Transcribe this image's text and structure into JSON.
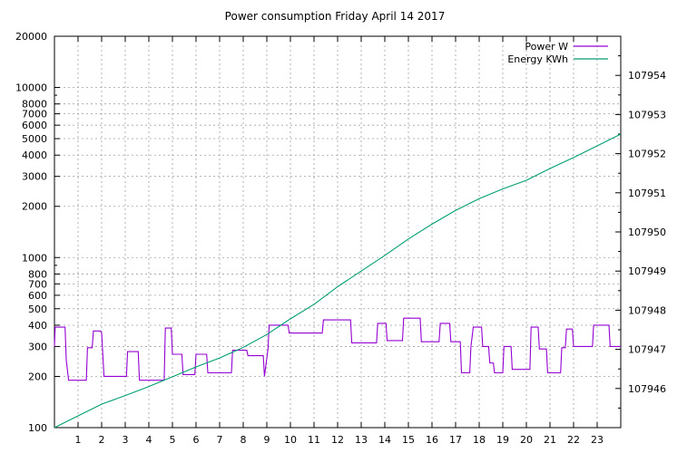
{
  "chart_data": {
    "type": "line",
    "title": "Power consumption Friday April 14 2017",
    "x_ticks": [
      "1",
      "2",
      "3",
      "4",
      "5",
      "6",
      "7",
      "8",
      "9",
      "10",
      "11",
      "12",
      "13",
      "14",
      "15",
      "16",
      "17",
      "18",
      "19",
      "20",
      "21",
      "22",
      "23"
    ],
    "xlim": [
      0,
      24
    ],
    "y_left": {
      "scale": "log",
      "ylim": [
        100,
        20000
      ],
      "ticks": [
        100,
        200,
        300,
        400,
        500,
        600,
        700,
        800,
        1000,
        2000,
        3000,
        4000,
        5000,
        6000,
        7000,
        8000,
        10000,
        20000
      ]
    },
    "y_right": {
      "scale": "linear",
      "ylim": [
        107945,
        107955
      ],
      "ticks": [
        107946,
        107947,
        107948,
        107949,
        107950,
        107951,
        107952,
        107953,
        107954
      ]
    },
    "grid": true,
    "legend_position": "top-right",
    "colors": {
      "power": "#9400d3",
      "energy": "#009e73"
    },
    "series": [
      {
        "name": "Power W",
        "axis": "left",
        "points": [
          [
            0.0,
            300
          ],
          [
            0.03,
            390
          ],
          [
            0.45,
            390
          ],
          [
            0.5,
            250
          ],
          [
            0.6,
            190
          ],
          [
            1.35,
            190
          ],
          [
            1.4,
            295
          ],
          [
            1.6,
            295
          ],
          [
            1.65,
            370
          ],
          [
            1.95,
            370
          ],
          [
            2.0,
            360
          ],
          [
            2.1,
            200
          ],
          [
            3.05,
            200
          ],
          [
            3.1,
            280
          ],
          [
            3.55,
            280
          ],
          [
            3.6,
            190
          ],
          [
            4.65,
            190
          ],
          [
            4.7,
            385
          ],
          [
            4.95,
            385
          ],
          [
            5.0,
            270
          ],
          [
            5.4,
            270
          ],
          [
            5.45,
            205
          ],
          [
            5.95,
            205
          ],
          [
            6.0,
            270
          ],
          [
            6.45,
            270
          ],
          [
            6.5,
            210
          ],
          [
            7.5,
            210
          ],
          [
            7.55,
            285
          ],
          [
            8.15,
            285
          ],
          [
            8.2,
            265
          ],
          [
            8.85,
            265
          ],
          [
            8.9,
            200
          ],
          [
            9.05,
            290
          ],
          [
            9.1,
            400
          ],
          [
            9.9,
            400
          ],
          [
            9.95,
            360
          ],
          [
            11.35,
            360
          ],
          [
            11.4,
            430
          ],
          [
            12.55,
            430
          ],
          [
            12.6,
            315
          ],
          [
            13.65,
            315
          ],
          [
            13.7,
            410
          ],
          [
            14.05,
            410
          ],
          [
            14.1,
            325
          ],
          [
            14.75,
            325
          ],
          [
            14.8,
            440
          ],
          [
            15.5,
            440
          ],
          [
            15.55,
            320
          ],
          [
            16.3,
            320
          ],
          [
            16.35,
            410
          ],
          [
            16.75,
            410
          ],
          [
            16.8,
            320
          ],
          [
            17.2,
            320
          ],
          [
            17.25,
            210
          ],
          [
            17.6,
            210
          ],
          [
            17.65,
            300
          ],
          [
            17.75,
            390
          ],
          [
            18.1,
            390
          ],
          [
            18.15,
            300
          ],
          [
            18.4,
            300
          ],
          [
            18.45,
            240
          ],
          [
            18.6,
            240
          ],
          [
            18.65,
            210
          ],
          [
            19.0,
            210
          ],
          [
            19.05,
            300
          ],
          [
            19.35,
            300
          ],
          [
            19.4,
            220
          ],
          [
            20.15,
            220
          ],
          [
            20.2,
            390
          ],
          [
            20.5,
            390
          ],
          [
            20.55,
            290
          ],
          [
            20.85,
            290
          ],
          [
            20.9,
            210
          ],
          [
            21.45,
            210
          ],
          [
            21.5,
            295
          ],
          [
            21.65,
            295
          ],
          [
            21.7,
            380
          ],
          [
            21.95,
            380
          ],
          [
            22.0,
            300
          ],
          [
            22.8,
            300
          ],
          [
            22.85,
            400
          ],
          [
            23.5,
            400
          ],
          [
            23.55,
            300
          ],
          [
            24.0,
            300
          ]
        ]
      },
      {
        "name": "Energy KWh",
        "axis": "right",
        "points": [
          [
            0.0,
            107945.0
          ],
          [
            1.0,
            107945.3
          ],
          [
            2.0,
            107945.6
          ],
          [
            3.0,
            107945.82
          ],
          [
            4.0,
            107946.05
          ],
          [
            5.0,
            107946.3
          ],
          [
            6.0,
            107946.55
          ],
          [
            7.0,
            107946.78
          ],
          [
            8.0,
            107947.05
          ],
          [
            9.0,
            107947.38
          ],
          [
            10.0,
            107947.78
          ],
          [
            11.0,
            107948.15
          ],
          [
            12.0,
            107948.6
          ],
          [
            13.0,
            107949.0
          ],
          [
            14.0,
            107949.4
          ],
          [
            15.0,
            107949.82
          ],
          [
            16.0,
            107950.2
          ],
          [
            17.0,
            107950.55
          ],
          [
            18.0,
            107950.85
          ],
          [
            19.0,
            107951.1
          ],
          [
            20.0,
            107951.32
          ],
          [
            21.0,
            107951.62
          ],
          [
            22.0,
            107951.9
          ],
          [
            23.0,
            107952.2
          ],
          [
            24.0,
            107952.5
          ]
        ]
      }
    ]
  }
}
